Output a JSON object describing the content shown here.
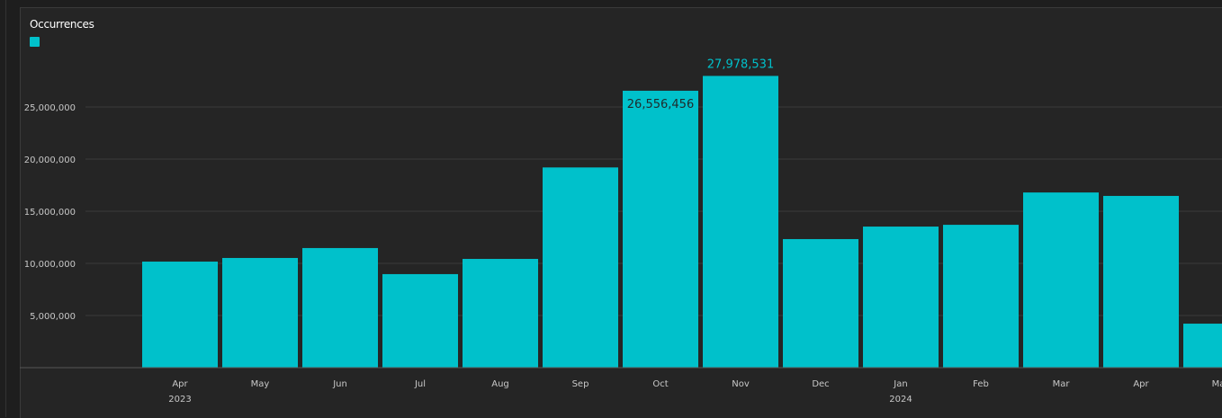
{
  "chart_data": {
    "type": "bar",
    "title": "",
    "legend": [
      {
        "name": "Occurrences",
        "color": "#00c1cb"
      }
    ],
    "legend_placement": "top-left",
    "categories": [
      "Apr",
      "May",
      "Jun",
      "Jul",
      "Aug",
      "Sep",
      "Oct",
      "Nov",
      "Dec",
      "Jan",
      "Feb",
      "Mar",
      "Apr",
      "May"
    ],
    "year_labels": [
      {
        "index": 0,
        "label": "2023"
      },
      {
        "index": 9,
        "label": "2024"
      }
    ],
    "series": [
      {
        "name": "Occurrences",
        "values": [
          10170000,
          10520000,
          11470000,
          8970000,
          10430000,
          19200000,
          26556456,
          27978531,
          12330000,
          13530000,
          13700000,
          16800000,
          16470000,
          4220000
        ]
      }
    ],
    "data_labels": [
      {
        "index": 6,
        "text": "26,556,456",
        "position": "inside"
      },
      {
        "index": 7,
        "text": "27,978,531",
        "position": "above"
      }
    ],
    "yticks": [
      5000000,
      10000000,
      15000000,
      20000000,
      25000000
    ],
    "ytick_labels": [
      "5,000,000",
      "10,000,000",
      "15,000,000",
      "20,000,000",
      "25,000,000"
    ],
    "ylim": [
      0,
      30000000
    ],
    "grid": true,
    "xlabel": "",
    "ylabel": "",
    "colors": {
      "bar": "#00c1cb",
      "grid": "#3c3c3c",
      "highlight_label": "#00c1cb"
    }
  }
}
